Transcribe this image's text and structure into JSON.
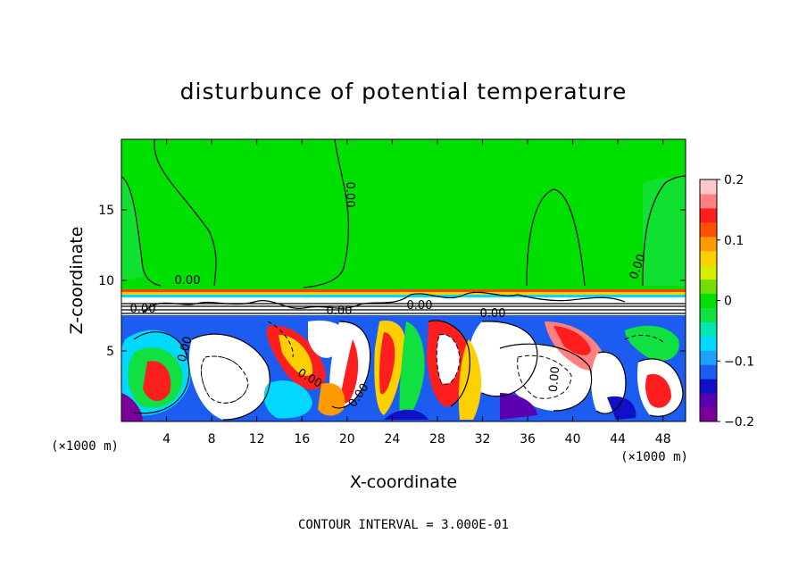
{
  "chart_data": {
    "type": "heatmap",
    "title": "disturbunce of potential temperature",
    "xlabel": "X-coordinate",
    "ylabel": "Z-coordinate",
    "x_unit": "(×1000 m)",
    "y_unit": "",
    "xlim": [
      0,
      50
    ],
    "ylim": [
      0,
      20
    ],
    "x_ticks": [
      4,
      8,
      12,
      16,
      20,
      24,
      28,
      32,
      36,
      40,
      44,
      48
    ],
    "y_ticks": [
      5,
      10,
      15
    ],
    "colorbar": {
      "range": [
        -0.2,
        0.2
      ],
      "ticks": [
        "0.2",
        "0.1",
        "0",
        "−0.1",
        "−0.2"
      ],
      "colors": [
        "#7b0099",
        "#5a00b0",
        "#1010c8",
        "#1c5cf0",
        "#1ea0ff",
        "#00d8ff",
        "#00e8b0",
        "#10e040",
        "#00e000",
        "#70e000",
        "#d8ec00",
        "#ffd000",
        "#ff9a00",
        "#ff5000",
        "#ff1e1e",
        "#ff8080",
        "#ffc8c8"
      ]
    },
    "contour_labels": [
      "0.00",
      "0.00",
      "0.00",
      "0.00",
      "0.00",
      "0.00",
      "0.00",
      "0.00",
      "0.00",
      "0.00",
      "0.00"
    ],
    "contour_interval_text": "CONTOUR INTERVAL = 3.000E-01"
  }
}
